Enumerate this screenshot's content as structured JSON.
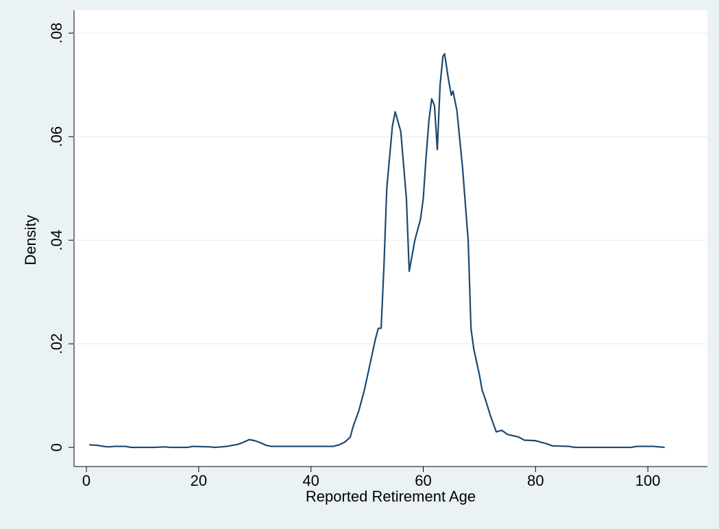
{
  "chart_data": {
    "type": "line",
    "x_label": "Reported Retirement Age",
    "y_label": "Density",
    "x": [
      0.5,
      2,
      3,
      4,
      5,
      7,
      8,
      12,
      14,
      15,
      18,
      19,
      22,
      23,
      25,
      27,
      28,
      29,
      30,
      31,
      32,
      33,
      40,
      44,
      45,
      46,
      47,
      47.5,
      48.5,
      49.5,
      50.5,
      51.5,
      52,
      52.5,
      53,
      53.5,
      54.5,
      55,
      56,
      57,
      57.5,
      58.5,
      59.5,
      60,
      60.5,
      61,
      61.5,
      62,
      62.5,
      63,
      63.5,
      63.8,
      64.5,
      65,
      65.3,
      66,
      67,
      68,
      68.5,
      69,
      70,
      70.5,
      71,
      72,
      73,
      74,
      75,
      77,
      78,
      80,
      82,
      83,
      86,
      87,
      97,
      98,
      101,
      102,
      103
    ],
    "values": [
      0.0005,
      0.0004,
      0.0002,
      0.0001,
      0.0002,
      0.0002,
      0,
      0,
      0.0001,
      0,
      0,
      0.0002,
      0.0001,
      0,
      0.0002,
      0.0006,
      0.001,
      0.0015,
      0.0013,
      0.0009,
      0.0004,
      0.0002,
      0.0002,
      0.0002,
      0.0005,
      0.001,
      0.002,
      0.004,
      0.007,
      0.011,
      0.016,
      0.021,
      0.023,
      0.023,
      0.035,
      0.05,
      0.062,
      0.0648,
      0.061,
      0.048,
      0.034,
      0.04,
      0.044,
      0.048,
      0.056,
      0.063,
      0.0673,
      0.066,
      0.0575,
      0.07,
      0.0755,
      0.076,
      0.071,
      0.068,
      0.0688,
      0.065,
      0.054,
      0.04,
      0.023,
      0.019,
      0.014,
      0.011,
      0.0095,
      0.006,
      0.003,
      0.0033,
      0.0025,
      0.002,
      0.0014,
      0.0013,
      0.0007,
      0.0003,
      0.0002,
      0,
      0,
      0.0002,
      0.0002,
      0.0001,
      0
    ],
    "color": "#1a476f",
    "xlim": [
      -2.2,
      110.6
    ],
    "xticks": [
      0,
      20,
      40,
      60,
      80,
      100
    ],
    "ylim": [
      -0.0037,
      0.0844
    ],
    "yticks": [
      0,
      {
        "value": 0.02,
        "label": ".02"
      },
      {
        "value": 0.04,
        "label": ".04"
      },
      {
        "value": 0.06,
        "label": ".06"
      },
      {
        "value": 0.08,
        "label": ".08"
      }
    ],
    "grid": true
  }
}
